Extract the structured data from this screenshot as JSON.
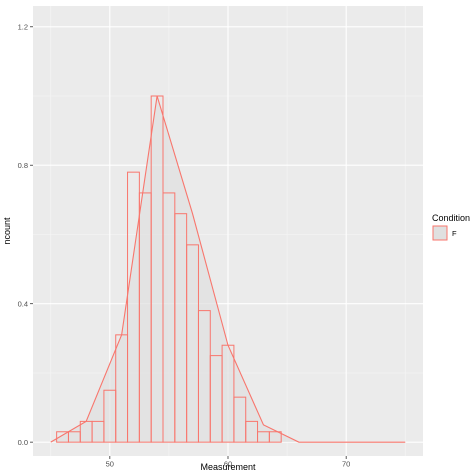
{
  "chart_data": {
    "type": "histogram",
    "xlabel": "Measurement",
    "ylabel": "ncount",
    "xlim": [
      43.5,
      76.5
    ],
    "ylim": [
      -0.04,
      1.26
    ],
    "x_ticks": [
      50,
      60,
      70
    ],
    "x_tick_labels": [
      "50",
      "60",
      "70"
    ],
    "y_ticks": [
      0.0,
      0.4,
      0.8,
      1.2
    ],
    "y_tick_labels": [
      "0.0",
      "0.4",
      "0.8",
      "1.2"
    ],
    "grid": true,
    "legend": {
      "title": "Condition",
      "position": "right",
      "entries": [
        {
          "label": "F",
          "color": "#f8766d"
        }
      ]
    },
    "series": [
      {
        "name": "F",
        "color": "#f8766d",
        "bins": [
          {
            "x0": 45.5,
            "x1": 46.5,
            "y": 0.03
          },
          {
            "x0": 46.5,
            "x1": 47.5,
            "y": 0.03
          },
          {
            "x0": 47.5,
            "x1": 48.5,
            "y": 0.06
          },
          {
            "x0": 48.5,
            "x1": 49.5,
            "y": 0.06
          },
          {
            "x0": 49.5,
            "x1": 50.5,
            "y": 0.15
          },
          {
            "x0": 50.5,
            "x1": 51.5,
            "y": 0.31
          },
          {
            "x0": 51.5,
            "x1": 52.5,
            "y": 0.78
          },
          {
            "x0": 52.5,
            "x1": 53.5,
            "y": 0.72
          },
          {
            "x0": 53.5,
            "x1": 54.5,
            "y": 1.0
          },
          {
            "x0": 54.5,
            "x1": 55.5,
            "y": 0.72
          },
          {
            "x0": 55.5,
            "x1": 56.5,
            "y": 0.66
          },
          {
            "x0": 56.5,
            "x1": 57.5,
            "y": 0.57
          },
          {
            "x0": 57.5,
            "x1": 58.5,
            "y": 0.38
          },
          {
            "x0": 58.5,
            "x1": 59.5,
            "y": 0.25
          },
          {
            "x0": 59.5,
            "x1": 60.5,
            "y": 0.28
          },
          {
            "x0": 60.5,
            "x1": 61.5,
            "y": 0.13
          },
          {
            "x0": 61.5,
            "x1": 62.5,
            "y": 0.06
          },
          {
            "x0": 62.5,
            "x1": 63.5,
            "y": 0.03
          },
          {
            "x0": 63.5,
            "x1": 64.5,
            "y": 0.03
          }
        ],
        "density_polygon": [
          {
            "x": 45,
            "y": 0.0
          },
          {
            "x": 48,
            "y": 0.06
          },
          {
            "x": 51,
            "y": 0.31
          },
          {
            "x": 54,
            "y": 1.0
          },
          {
            "x": 57,
            "y": 0.66
          },
          {
            "x": 60,
            "y": 0.28
          },
          {
            "x": 63,
            "y": 0.05
          },
          {
            "x": 66,
            "y": 0.0
          },
          {
            "x": 75,
            "y": 0.0
          }
        ]
      }
    ]
  }
}
